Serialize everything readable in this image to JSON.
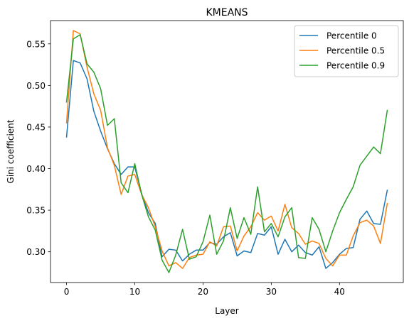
{
  "chart_data": {
    "type": "line",
    "title": "KMEANS",
    "xlabel": "Layer",
    "ylabel": "Gini coefficient",
    "xlim": [
      -2.35,
      49.35
    ],
    "ylim": [
      0.263,
      0.578
    ],
    "xticks": [
      0,
      10,
      20,
      30,
      40
    ],
    "yticks": [
      0.3,
      0.35,
      0.4,
      0.45,
      0.5,
      0.55
    ],
    "ytick_labels": [
      "0.30",
      "0.35",
      "0.40",
      "0.45",
      "0.50",
      "0.55"
    ],
    "grid": false,
    "legend_position": "top-right",
    "x": [
      0,
      1,
      2,
      3,
      4,
      5,
      6,
      7,
      8,
      9,
      10,
      11,
      12,
      13,
      14,
      15,
      16,
      17,
      18,
      19,
      20,
      21,
      22,
      23,
      24,
      25,
      26,
      27,
      28,
      29,
      30,
      31,
      32,
      33,
      34,
      35,
      36,
      37,
      38,
      39,
      40,
      41,
      42,
      43,
      44,
      45,
      46,
      47
    ],
    "series": [
      {
        "name": "Percentile 0",
        "color": "#1f77b4",
        "values": [
          0.438,
          0.53,
          0.527,
          0.508,
          0.469,
          0.445,
          0.424,
          0.406,
          0.393,
          0.402,
          0.402,
          0.37,
          0.347,
          0.334,
          0.294,
          0.303,
          0.302,
          0.289,
          0.297,
          0.302,
          0.302,
          0.311,
          0.309,
          0.318,
          0.323,
          0.295,
          0.301,
          0.299,
          0.322,
          0.32,
          0.33,
          0.297,
          0.315,
          0.3,
          0.308,
          0.299,
          0.296,
          0.306,
          0.28,
          0.287,
          0.297,
          0.304,
          0.305,
          0.339,
          0.349,
          0.334,
          0.333,
          0.374
        ]
      },
      {
        "name": "Percentile 0.5",
        "color": "#ff7f0e",
        "values": [
          0.455,
          0.566,
          0.562,
          0.522,
          0.49,
          0.47,
          0.425,
          0.404,
          0.369,
          0.391,
          0.393,
          0.369,
          0.353,
          0.33,
          0.301,
          0.283,
          0.287,
          0.28,
          0.293,
          0.296,
          0.297,
          0.312,
          0.307,
          0.33,
          0.331,
          0.301,
          0.319,
          0.33,
          0.347,
          0.338,
          0.343,
          0.325,
          0.357,
          0.329,
          0.322,
          0.309,
          0.313,
          0.31,
          0.292,
          0.283,
          0.296,
          0.296,
          0.319,
          0.335,
          0.338,
          0.331,
          0.31,
          0.358
        ]
      },
      {
        "name": "Percentile 0.9",
        "color": "#2ca02c",
        "values": [
          0.48,
          0.556,
          0.561,
          0.526,
          0.516,
          0.496,
          0.452,
          0.46,
          0.383,
          0.371,
          0.406,
          0.369,
          0.342,
          0.326,
          0.29,
          0.275,
          0.296,
          0.327,
          0.291,
          0.294,
          0.312,
          0.344,
          0.297,
          0.313,
          0.353,
          0.316,
          0.341,
          0.321,
          0.378,
          0.324,
          0.334,
          0.318,
          0.342,
          0.353,
          0.293,
          0.292,
          0.341,
          0.327,
          0.3,
          0.325,
          0.347,
          0.363,
          0.378,
          0.404,
          0.415,
          0.426,
          0.418,
          0.47
        ]
      }
    ]
  }
}
